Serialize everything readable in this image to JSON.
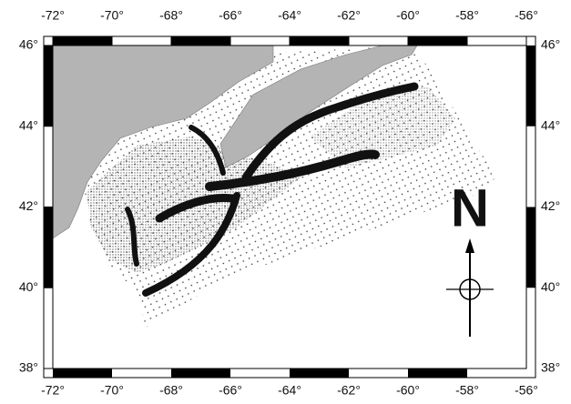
{
  "map": {
    "lon_range": [
      -72,
      -56
    ],
    "lat_range": [
      38,
      46
    ],
    "lon_ticks": [
      {
        "value": -72,
        "label": "-72°"
      },
      {
        "value": -70,
        "label": "-70°"
      },
      {
        "value": -68,
        "label": "-68°"
      },
      {
        "value": -66,
        "label": "-66°"
      },
      {
        "value": -64,
        "label": "-64°"
      },
      {
        "value": -62,
        "label": "-62°"
      },
      {
        "value": -60,
        "label": "-60°"
      },
      {
        "value": -58,
        "label": "-58°"
      },
      {
        "value": -56,
        "label": "-56°"
      }
    ],
    "lat_ticks": [
      {
        "value": 38,
        "label": "38°"
      },
      {
        "value": 40,
        "label": "40°"
      },
      {
        "value": 42,
        "label": "42°"
      },
      {
        "value": 44,
        "label": "44°"
      },
      {
        "value": 46,
        "label": "46°"
      }
    ],
    "north_label": "N"
  }
}
